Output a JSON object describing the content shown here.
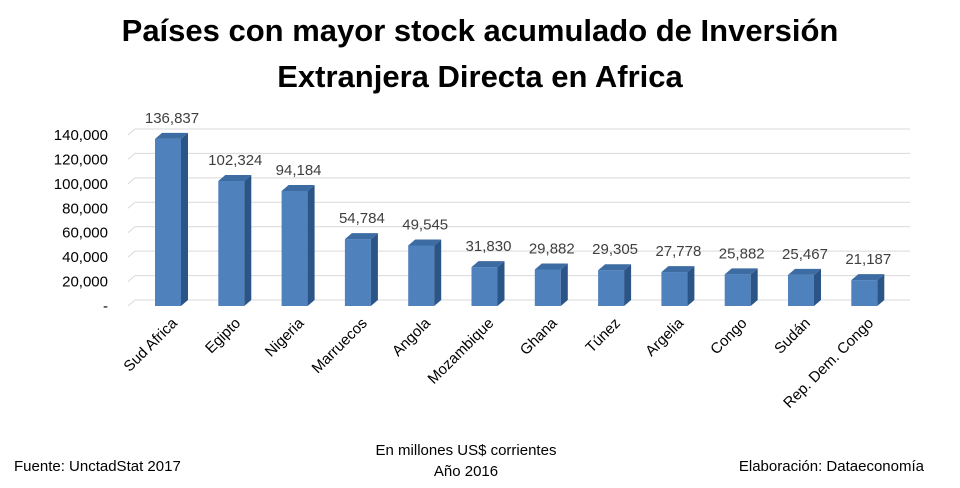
{
  "chart_data": {
    "type": "bar",
    "title_lines": [
      "Países con mayor stock acumulado de Inversión",
      "Extranjera Directa en Africa"
    ],
    "categories": [
      "Sud Africa",
      "Egipto",
      "Nigeria",
      "Marruecos",
      "Angola",
      "Mozambique",
      "Ghana",
      "Túnez",
      "Argelia",
      "Congo",
      "Sudán",
      "Rep. Dem. Congo"
    ],
    "values": [
      136837,
      102324,
      94184,
      54784,
      49545,
      31830,
      29882,
      29305,
      27778,
      25882,
      25467,
      21187
    ],
    "data_labels": [
      "136,837",
      "102,324",
      "94,184",
      "54,784",
      "49,545",
      "31,830",
      "29,882",
      "29,305",
      "27,778",
      "25,882",
      "25,467",
      "21,187"
    ],
    "yticks": [
      "-",
      "20,000",
      "40,000",
      "60,000",
      "80,000",
      "100,000",
      "120,000",
      "140,000"
    ],
    "ylim": [
      0,
      140000
    ],
    "grid": true,
    "bar_color": "#4f81bd",
    "bar_side_color": "#2c5587",
    "bar_top_color": "#3d6ca3"
  },
  "footer": {
    "source": "Fuente: UnctadStat 2017",
    "units": "En millones US$ corrientes",
    "year": "Año 2016",
    "credit": "Elaboración: Dataeconomía"
  }
}
